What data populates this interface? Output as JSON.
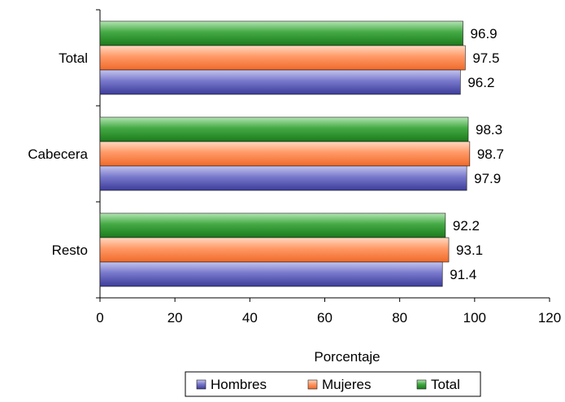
{
  "chart_data": {
    "type": "bar",
    "orientation": "horizontal",
    "categories": [
      "Total",
      "Cabecera",
      "Resto"
    ],
    "series": [
      {
        "name": "Hombres",
        "values": [
          96.2,
          97.9,
          91.4
        ],
        "color": "#5b5bb5"
      },
      {
        "name": "Mujeres",
        "values": [
          97.5,
          98.7,
          93.1
        ],
        "color": "#ff8a55"
      },
      {
        "name": "Total",
        "values": [
          96.9,
          98.3,
          92.2
        ],
        "color": "#2e9a2e"
      }
    ],
    "xlabel": "Porcentaje",
    "ylabel": "",
    "xlim": [
      0,
      120
    ],
    "xticks": [
      0,
      20,
      40,
      60,
      80,
      100,
      120
    ],
    "grid": false,
    "legend_position": "bottom"
  }
}
